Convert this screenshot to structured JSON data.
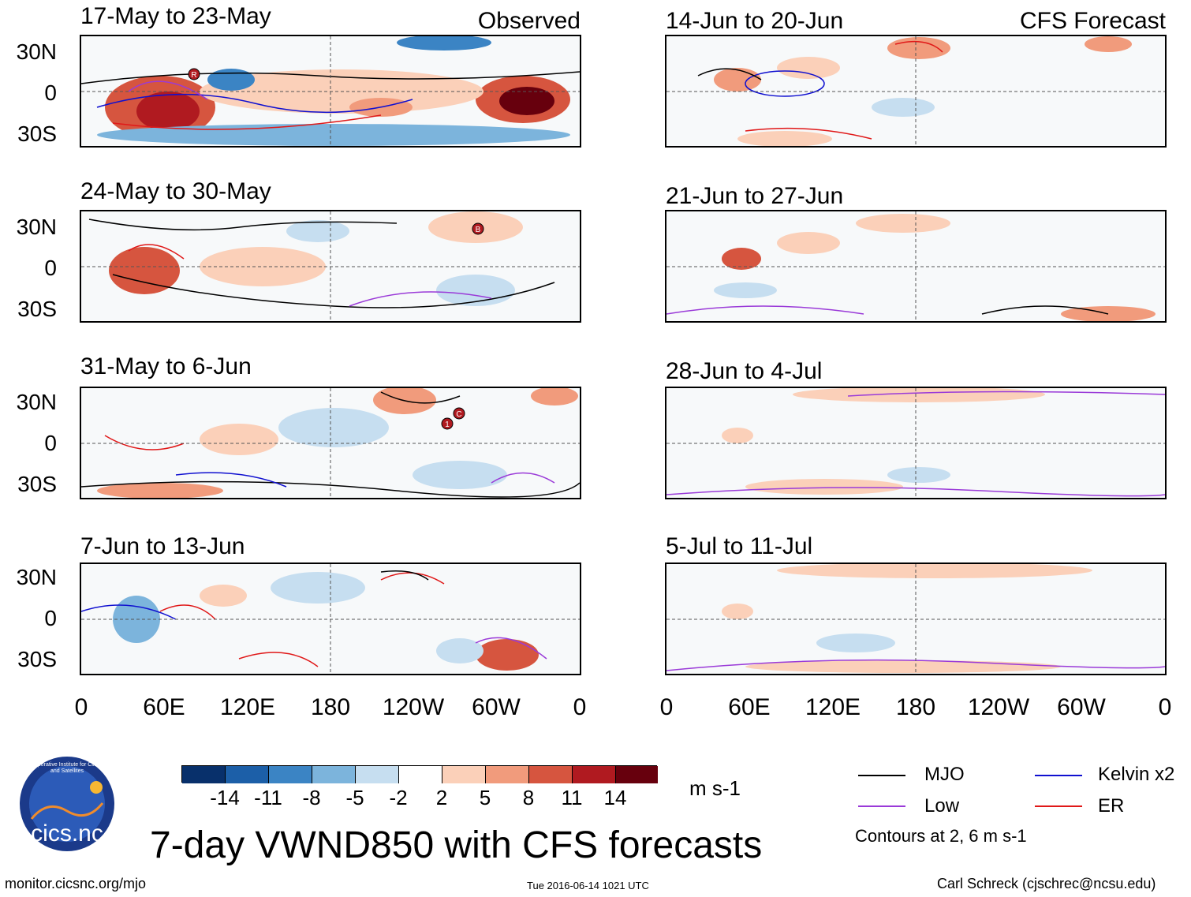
{
  "observed": {
    "tag": "Observed",
    "panels": [
      {
        "title": "17-May to 23-May"
      },
      {
        "title": "24-May to 30-May"
      },
      {
        "title": "31-May to 6-Jun"
      },
      {
        "title": "7-Jun to 13-Jun"
      }
    ]
  },
  "forecast": {
    "tag": "CFS Forecast",
    "panels": [
      {
        "title": "14-Jun to 20-Jun"
      },
      {
        "title": "21-Jun to 27-Jun"
      },
      {
        "title": "28-Jun to 4-Jul"
      },
      {
        "title": "5-Jul to 11-Jul"
      }
    ]
  },
  "lat_labels": [
    "30N",
    "0",
    "30S"
  ],
  "lon_labels": [
    "0",
    "60E",
    "120E",
    "180",
    "120W",
    "60W",
    "0"
  ],
  "storm_markers": {
    "p0": "R",
    "p1": "B",
    "p2a": "1",
    "p2b": "C"
  },
  "colorbar": {
    "units": "m s-1",
    "ticks": [
      "-14",
      "-11",
      "-8",
      "-5",
      "-2",
      "2",
      "5",
      "8",
      "11",
      "14"
    ],
    "colors": [
      "#08306b",
      "#1c5fa8",
      "#3b84c4",
      "#7cb4dc",
      "#c6def0",
      "#ffffff",
      "#fbd0b9",
      "#f19b7c",
      "#d6553f",
      "#b01a20",
      "#67000d"
    ]
  },
  "legend": {
    "items": [
      {
        "label": "MJO",
        "color": "#000000"
      },
      {
        "label": "Kelvin x2",
        "color": "#1010d0"
      },
      {
        "label": "Low",
        "color": "#9a3ad8"
      },
      {
        "label": "ER",
        "color": "#e01818"
      }
    ],
    "note": "Contours at 2, 6 m s-1"
  },
  "logo": {
    "text": "cics.nc",
    "ring_text": "Cooperative Institute for Climate and Satellites"
  },
  "title": "7-day VWND850 with CFS forecasts",
  "footer": {
    "url": "monitor.cicsnc.org/mjo",
    "timestamp": "Tue 2016-06-14 1021 UTC",
    "author": "Carl Schreck (cjschrec@ncsu.edu)"
  }
}
